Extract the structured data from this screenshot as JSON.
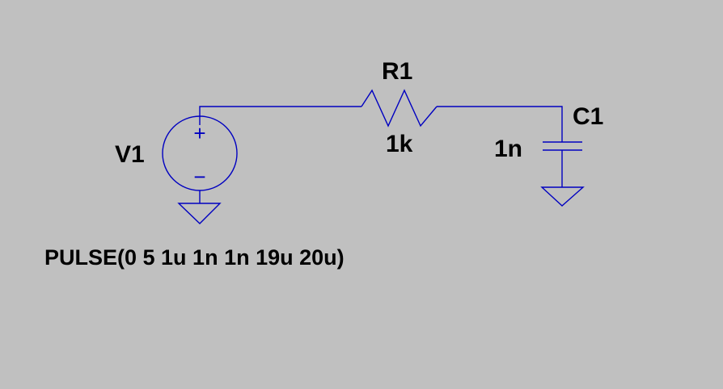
{
  "colors": {
    "background": "#c0c0c0",
    "wire": "#0000c0",
    "text": "#000000"
  },
  "components": {
    "v1": {
      "name": "V1",
      "value": "PULSE(0 5 1u 1n 1n 19u 20u)",
      "plus_sign": "+",
      "minus_sign": "−"
    },
    "r1": {
      "name": "R1",
      "value": "1k"
    },
    "c1": {
      "name": "C1",
      "value": "1n"
    }
  }
}
